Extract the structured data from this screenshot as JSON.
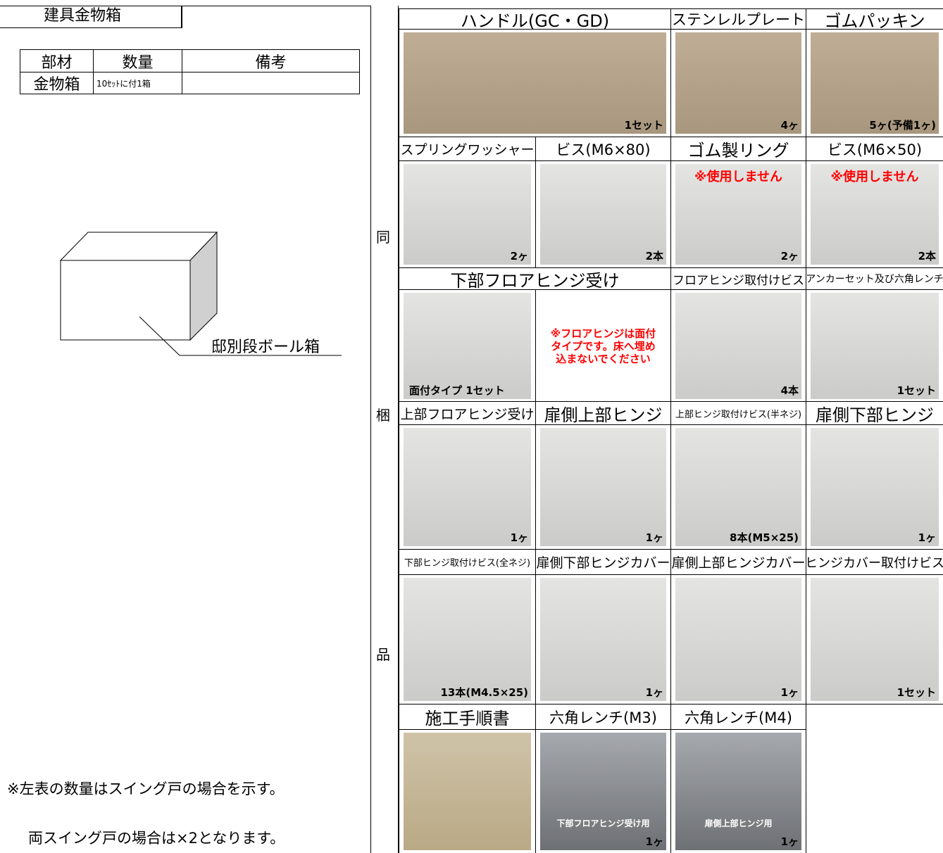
{
  "header": {
    "title": "建具金物箱"
  },
  "table": {
    "headers": [
      "部材",
      "数量",
      "備考"
    ],
    "rows": [
      [
        "金物箱",
        "10ｾｯﾄに付1箱"
      ]
    ]
  },
  "box_label": "邸別段ボール箱",
  "notes": [
    "※左表の数量はスイング戸の場合を示す。",
    "両スイング戸の場合は×2となります。"
  ],
  "side_label": [
    "同",
    "梱",
    "品"
  ],
  "items": [
    [
      {
        "title": "ハンドル(GC・GD)",
        "qty": "1セット"
      },
      {
        "title": "ステンレルプレート",
        "qty": "4ヶ"
      },
      {
        "title": "ゴムパッキン",
        "qty": "5ヶ(予備1ヶ)"
      }
    ],
    [
      {
        "title": "スプリングワッシャー",
        "qty": "2ヶ"
      },
      {
        "title": "ビス(M6×80)",
        "qty": "2本"
      },
      {
        "title": "ゴム製リング",
        "warning": "※使用しません",
        "qty": "2ヶ"
      },
      {
        "title": "ビス(M6×50)",
        "warning": "※使用しません",
        "qty": "2本"
      }
    ],
    [
      {
        "title": "下部フロアヒンジ受け",
        "qty": "面付タイプ 1セット",
        "note": "※フロアヒンジは面付タイプです。床へ埋め込まないでください"
      },
      {
        "title": "フロアヒンジ取付けビス",
        "qty": "4本"
      },
      {
        "title": "アンカーセット及び六角レンチ",
        "qty": "1セット"
      }
    ],
    [
      {
        "title": "上部フロアヒンジ受け",
        "qty": "1ヶ"
      },
      {
        "title": "扉側上部ヒンジ",
        "qty": "1ヶ"
      },
      {
        "title": "上部ヒンジ取付けビス(半ネジ)",
        "qty": "8本(M5×25)"
      },
      {
        "title": "扉側下部ヒンジ",
        "qty": "1ヶ"
      }
    ],
    [
      {
        "title": "下部ヒンジ取付けビス(全ネジ)",
        "qty": "13本(M4.5×25)"
      },
      {
        "title": "扉側下部ヒンジカバー",
        "qty": "1ヶ"
      },
      {
        "title": "扉側上部ヒンジカバー",
        "qty": "1ヶ"
      },
      {
        "title": "ヒンジカバー取付けビス",
        "qty": "1セット"
      }
    ],
    [
      {
        "title": "施工手順書"
      },
      {
        "title": "六角レンチ(M3)",
        "caption": "下部フロアヒンジ受け用",
        "qty": "1ヶ"
      },
      {
        "title": "六角レンチ(M4)",
        "caption": "扉側上部ヒンジ用",
        "qty": "1ヶ"
      }
    ]
  ]
}
